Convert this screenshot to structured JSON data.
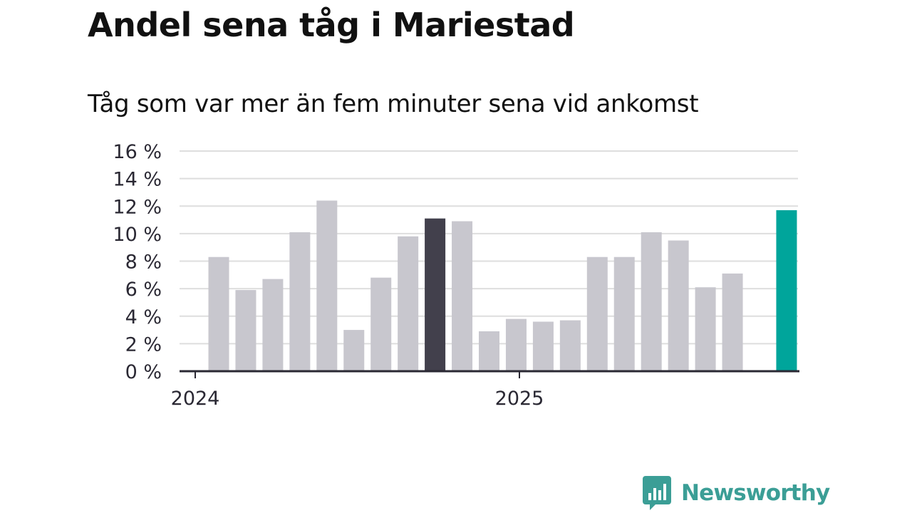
{
  "title": "Andel sena tåg i Mariestad",
  "subtitle": "Tåg som var mer än fem minuter sena vid ankomst",
  "colors": {
    "bar_default": "#c8c7ce",
    "bar_highlight_dark": "#42404c",
    "bar_highlight_latest": "#00a59b",
    "grid": "#dedede",
    "axis": "#2a2833",
    "brand": "#3b9e96"
  },
  "logo": {
    "text": "Newsworthy",
    "icon": "newsworthy-bar-chart-icon"
  },
  "chart_data": {
    "type": "bar",
    "title": "Andel sena tåg i Mariestad",
    "subtitle": "Tåg som var mer än fem minuter sena vid ankomst",
    "categories": [
      "2024-01",
      "2024-02",
      "2024-03",
      "2024-04",
      "2024-05",
      "2024-06",
      "2024-07",
      "2024-08",
      "2024-09",
      "2024-10",
      "2024-11",
      "2024-12",
      "2025-01",
      "2025-02",
      "2025-03",
      "2025-04",
      "2025-05",
      "2025-06",
      "2025-07",
      "2025-08",
      "2025-09",
      "2025-10"
    ],
    "values": [
      8.3,
      5.9,
      6.7,
      10.1,
      12.4,
      3.0,
      6.8,
      9.8,
      11.1,
      10.9,
      2.9,
      3.8,
      3.6,
      3.7,
      8.3,
      8.3,
      10.1,
      9.5,
      6.1,
      7.1,
      null,
      11.7
    ],
    "highlight": {
      "2024-09": "bar_highlight_dark",
      "2025-10": "bar_highlight_latest"
    },
    "ylim": [
      0,
      16
    ],
    "yticks": [
      0,
      2,
      4,
      6,
      8,
      10,
      12,
      14,
      16
    ],
    "ytick_labels": [
      "0 %",
      "2 %",
      "4 %",
      "6 %",
      "8 %",
      "10 %",
      "12 %",
      "14 %",
      "16 %"
    ],
    "xtick_labels": [
      {
        "at": "2024-01",
        "label": "2024"
      },
      {
        "at": "2025-01",
        "label": "2025"
      }
    ],
    "xlabel": "",
    "ylabel": "",
    "grid": true,
    "legend": "none"
  }
}
